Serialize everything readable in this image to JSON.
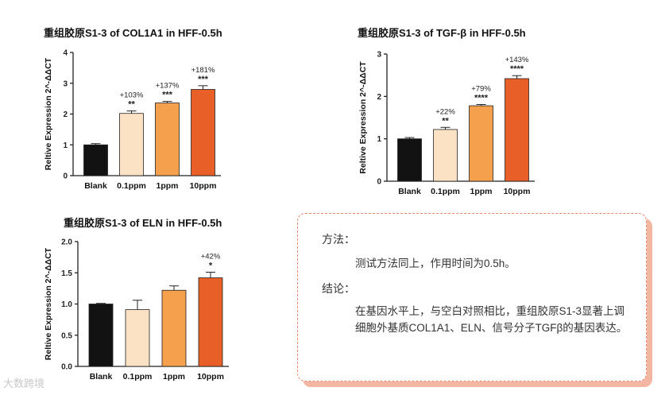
{
  "chart_data": [
    {
      "type": "bar",
      "title_cn": "重组胶原",
      "title_en": "S1-3 of COL1A1 in HFF-0.5h",
      "ylabel": "Reltive Expression 2^-ΔΔCT",
      "categories": [
        "Blank",
        "0.1ppm",
        "1ppm",
        "10ppm"
      ],
      "values": [
        1.0,
        2.02,
        2.36,
        2.8
      ],
      "errors": [
        0.04,
        0.08,
        0.05,
        0.12
      ],
      "significance": [
        "",
        "**",
        "***",
        "***"
      ],
      "percent_labels": [
        "",
        "+103%",
        "+137%",
        "+181%"
      ],
      "ylim": [
        0,
        4
      ],
      "yticks": [
        0,
        1,
        2,
        3,
        4
      ],
      "ytick_labels": [
        "0",
        "1",
        "2",
        "3",
        "4"
      ],
      "colors": [
        "#121212",
        "#fbe2c4",
        "#f4a04d",
        "#e85f27"
      ]
    },
    {
      "type": "bar",
      "title_cn": "重组胶原",
      "title_en": "S1-3 of TGF-β in HFF-0.5h",
      "ylabel": "Reltive Expression 2^-ΔΔCT",
      "categories": [
        "Blank",
        "0.1ppm",
        "1ppm",
        "10ppm"
      ],
      "values": [
        1.0,
        1.22,
        1.78,
        2.42
      ],
      "errors": [
        0.03,
        0.05,
        0.03,
        0.07
      ],
      "significance": [
        "",
        "**",
        "****",
        "****"
      ],
      "percent_labels": [
        "",
        "+22%",
        "+79%",
        "+143%"
      ],
      "ylim": [
        0,
        3
      ],
      "yticks": [
        0,
        1,
        2,
        3
      ],
      "ytick_labels": [
        "0",
        "1",
        "2",
        "3"
      ],
      "colors": [
        "#121212",
        "#fbe2c4",
        "#f4a04d",
        "#e85f27"
      ]
    },
    {
      "type": "bar",
      "title_cn": "重组胶原",
      "title_en": "S1-3 of ELN in HFF-0.5h",
      "ylabel": "Reltive Expression 2^-ΔΔCT",
      "categories": [
        "Blank",
        "0.1ppm",
        "1ppm",
        "10ppm"
      ],
      "values": [
        1.0,
        0.91,
        1.22,
        1.42
      ],
      "errors": [
        0.01,
        0.15,
        0.07,
        0.09
      ],
      "significance": [
        "",
        "",
        "",
        "*"
      ],
      "percent_labels": [
        "",
        "",
        "",
        "+42%"
      ],
      "ylim": [
        0,
        2
      ],
      "yticks": [
        0,
        0.5,
        1,
        1.5,
        2
      ],
      "ytick_labels": [
        "0.0",
        "0.5",
        "1.0",
        "1.5",
        "2.0"
      ],
      "colors": [
        "#121212",
        "#fbe2c4",
        "#f4a04d",
        "#e85f27"
      ]
    }
  ],
  "info": {
    "method_heading": "方法：",
    "method_text": "测试方法同上，作用时间为0.5h。",
    "conclusion_heading": "结论：",
    "conclusion_text": "在基因水平上，与空白对照相比，重组胶原S1-3显著上调细胞外基质COL1A1、ELN、信号分子TGFβ的基因表达。"
  },
  "watermark": "大数跨境"
}
